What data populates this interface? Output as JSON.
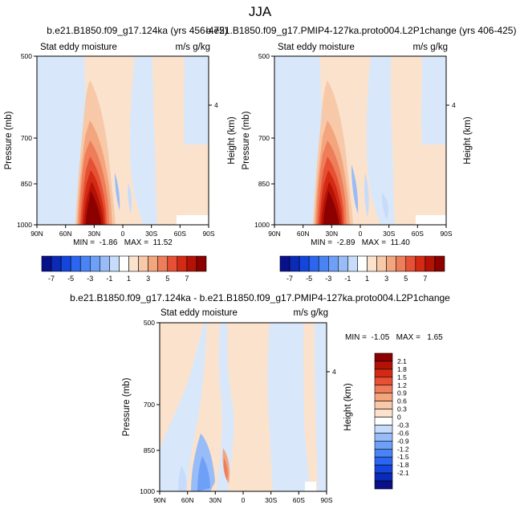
{
  "page_title": "JJA",
  "colors": {
    "neg": [
      "#08108c",
      "#0c2ab8",
      "#1446de",
      "#2c66f0",
      "#4a84f4",
      "#6ea0f8",
      "#98bcf8",
      "#c6dcfa"
    ],
    "pos": [
      "#fbe2cd",
      "#f7c9a8",
      "#f3a57e",
      "#ee7d5a",
      "#e65034",
      "#d42a14",
      "#b41206",
      "#8c0000"
    ],
    "bg_pos": "#fbe2cd",
    "bg_neg": "#d8e8fa",
    "bg_white": "#ffffff"
  },
  "chart_data": [
    {
      "type": "contour",
      "title": "b.e21.B1850.f09_g17.124ka (yrs 456-475)",
      "left_string": "Stat eddy moisture",
      "right_string": "m/s g/kg",
      "ylabel": "Pressure (mb)",
      "y2label": "Height (km)",
      "yticks": [
        "500",
        "700",
        "850",
        "1000"
      ],
      "y2ticks": [
        "4"
      ],
      "xticks": [
        "90N",
        "60N",
        "30N",
        "0",
        "30S",
        "60S",
        "90S"
      ],
      "xlim": [
        90,
        -90
      ],
      "ylim": [
        1000,
        500
      ],
      "min_text": "MIN =  -1.86   MAX =  11.52",
      "min": -1.86,
      "max": 11.52
    },
    {
      "type": "contour",
      "title": "b.e21.B1850.f09_g17.PMIP4-127ka.proto004.L2P1change (yrs 406-425)",
      "left_string": "Stat eddy moisture",
      "right_string": "m/s g/kg",
      "ylabel": "Pressure (mb)",
      "y2label": "Height (km)",
      "yticks": [
        "500",
        "700",
        "850",
        "1000"
      ],
      "y2ticks": [
        "4"
      ],
      "xticks": [
        "90N",
        "60N",
        "30N",
        "0",
        "30S",
        "60S",
        "90S"
      ],
      "xlim": [
        90,
        -90
      ],
      "ylim": [
        1000,
        500
      ],
      "min_text": "MIN =  -2.89   MAX =  11.40",
      "min": -2.89,
      "max": 11.4
    },
    {
      "type": "contour",
      "title": "b.e21.B1850.f09_g17.124ka - b.e21.B1850.f09_g17.PMIP4-127ka.proto004.L2P1change",
      "left_string": "Stat eddy moisture",
      "right_string": "m/s g/kg",
      "ylabel": "Pressure (mb)",
      "y2label": "Height (km)",
      "yticks": [
        "500",
        "700",
        "850",
        "1000"
      ],
      "y2ticks": [
        "4"
      ],
      "xticks": [
        "90N",
        "60N",
        "30N",
        "0",
        "30S",
        "60S",
        "90S"
      ],
      "xlim": [
        90,
        -90
      ],
      "ylim": [
        1000,
        500
      ],
      "min_text": "MIN =  -1.05   MAX =   1.65",
      "min": -1.05,
      "max": 1.65
    }
  ],
  "colorbars": {
    "top": {
      "labels": [
        "-7",
        "-5",
        "-3",
        "-1",
        "1",
        "3",
        "5",
        "7"
      ]
    },
    "diff": {
      "labels": [
        "2.1",
        "1.8",
        "1.5",
        "1.2",
        "0.9",
        "0.6",
        "0.3",
        "0",
        "-0.3",
        "-0.6",
        "-0.9",
        "-1.2",
        "-1.5",
        "-1.8",
        "-2.1"
      ]
    }
  }
}
